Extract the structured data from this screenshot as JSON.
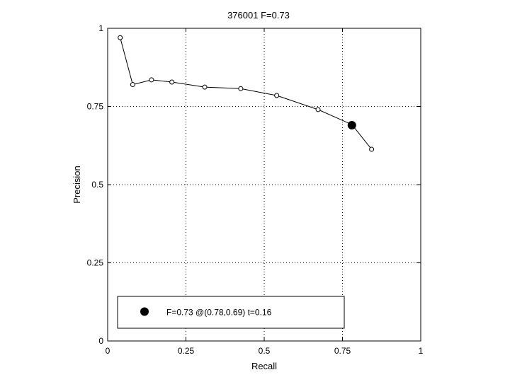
{
  "chart_data": {
    "type": "scatter",
    "title": "376001 F=0.73",
    "xlabel": "Recall",
    "ylabel": "Precision",
    "xlim": [
      0,
      1
    ],
    "ylim": [
      0,
      1
    ],
    "xticks": [
      0,
      0.25,
      0.5,
      0.75,
      1
    ],
    "yticks": [
      0,
      0.25,
      0.5,
      0.75,
      1
    ],
    "xtick_labels": [
      "0",
      "0.25",
      "0.5",
      "0.75",
      "1"
    ],
    "ytick_labels": [
      "0",
      "0.25",
      "0.5",
      "0.75",
      "1"
    ],
    "grid": true,
    "grid_style": "dotted",
    "series": [
      {
        "marker": "open-circle",
        "line": true,
        "color": "#000000",
        "points": [
          {
            "x": 0.04,
            "y": 0.97
          },
          {
            "x": 0.08,
            "y": 0.82
          },
          {
            "x": 0.14,
            "y": 0.835
          },
          {
            "x": 0.205,
            "y": 0.828
          },
          {
            "x": 0.31,
            "y": 0.812
          },
          {
            "x": 0.425,
            "y": 0.807
          },
          {
            "x": 0.54,
            "y": 0.785
          },
          {
            "x": 0.672,
            "y": 0.74
          },
          {
            "x": 0.78,
            "y": 0.692
          },
          {
            "x": 0.843,
            "y": 0.613
          }
        ]
      }
    ],
    "best_point": {
      "x": 0.78,
      "y": 0.69,
      "marker": "filled-circle",
      "color": "#000000"
    },
    "legend": {
      "placement": "bottom",
      "entries": [
        {
          "label": "F=0.73 @(0.78,0.69) t=0.16",
          "marker": "filled-circle"
        }
      ]
    }
  }
}
